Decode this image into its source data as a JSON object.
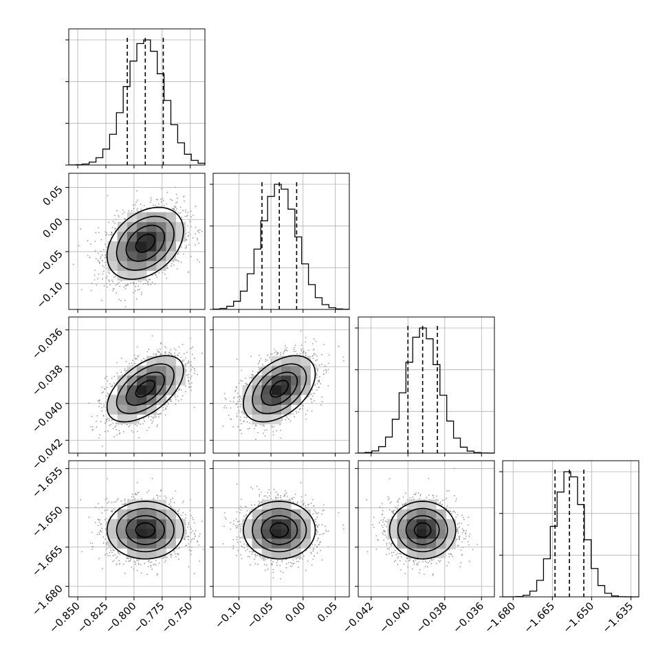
{
  "chart_data": {
    "type": "scatter",
    "subtype": "corner-plot",
    "parameters": [
      {
        "mean": -0.79,
        "std": 0.017,
        "quantiles": [
          -0.806,
          -0.79,
          -0.774
        ],
        "range": [
          -0.858,
          -0.737
        ],
        "ticks": [
          -0.85,
          -0.825,
          -0.8,
          -0.775,
          -0.75
        ],
        "tick_labels": [
          "−0.850",
          "−0.825",
          "−0.800",
          "−0.775",
          "−0.750"
        ]
      },
      {
        "mean": -0.037,
        "std": 0.028,
        "quantiles": [
          -0.064,
          -0.037,
          -0.01
        ],
        "range": [
          -0.14,
          0.072
        ],
        "ticks": [
          -0.1,
          -0.05,
          0.0,
          0.05
        ],
        "tick_labels": [
          "−0.10",
          "−0.05",
          "0.00",
          "0.05"
        ]
      },
      {
        "mean": -0.0392,
        "std": 0.0009,
        "quantiles": [
          -0.04,
          -0.0392,
          -0.0384
        ],
        "range": [
          -0.0427,
          -0.0353
        ],
        "ticks": [
          -0.042,
          -0.04,
          -0.038,
          -0.036
        ],
        "tick_labels": [
          "−0.042",
          "−0.040",
          "−0.038",
          "−0.036"
        ]
      },
      {
        "mean": -1.6585,
        "std": 0.0055,
        "quantiles": [
          -1.664,
          -1.6585,
          -1.653
        ],
        "range": [
          -1.684,
          -1.632
        ],
        "ticks": [
          -1.68,
          -1.665,
          -1.65,
          -1.635
        ],
        "tick_labels": [
          "−1.680",
          "−1.665",
          "−1.650",
          "−1.635"
        ]
      }
    ],
    "correlations": [
      [
        0,
        1,
        0.35
      ],
      [
        0,
        2,
        0.55
      ],
      [
        1,
        2,
        0.45
      ],
      [
        0,
        3,
        0.0
      ],
      [
        1,
        3,
        0.0
      ],
      [
        2,
        3,
        0.0
      ]
    ],
    "histogram_bins": 20,
    "contour_levels_sigma": [
      0.5,
      1.0,
      1.5,
      2.0
    ],
    "samples_shown": 2200,
    "grid": true,
    "legend": "none",
    "colors": {
      "density": "#000000",
      "scatter": "#9a9a9a",
      "grid": "#b0b0b0"
    }
  }
}
